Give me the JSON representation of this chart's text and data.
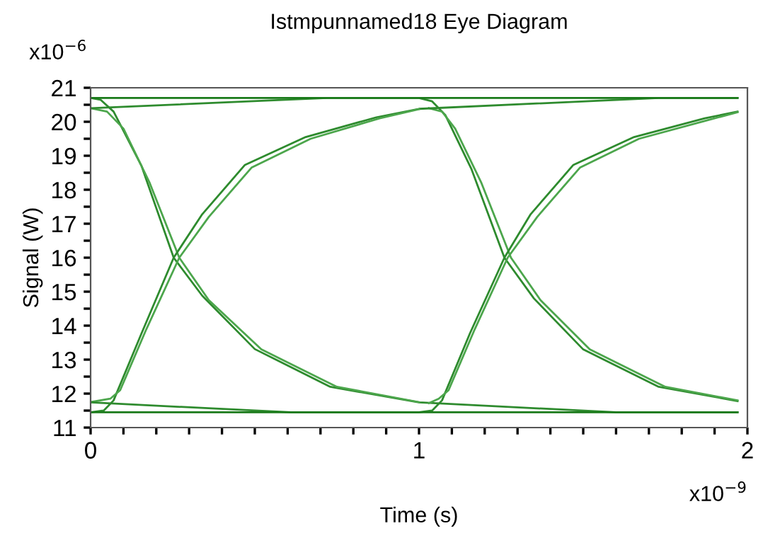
{
  "chart_data": {
    "type": "line",
    "title": "Istmpunnamed18 Eye Diagram",
    "xlabel": "Time (s)",
    "ylabel": "Signal (W)",
    "annotations": [
      "x10$^{−6}$",
      "x10$^{−9}$"
    ],
    "xlim": [
      0,
      2
    ],
    "ylim": [
      11,
      21
    ],
    "xticks": [
      0,
      {
        "value": 0.1,
        "label": null
      },
      {
        "value": 0.2,
        "label": null
      },
      {
        "value": 0.3,
        "label": null
      },
      {
        "value": 0.4,
        "label": null
      },
      {
        "value": 0.5,
        "label": null
      },
      {
        "value": 0.6,
        "label": null
      },
      {
        "value": 0.7,
        "label": null
      },
      {
        "value": 0.8,
        "label": null
      },
      {
        "value": 0.9,
        "label": null
      },
      1,
      {
        "value": 1.1,
        "label": null
      },
      {
        "value": 1.2,
        "label": null
      },
      {
        "value": 1.3,
        "label": null
      },
      {
        "value": 1.4,
        "label": null
      },
      {
        "value": 1.5,
        "label": null
      },
      {
        "value": 1.6,
        "label": null
      },
      {
        "value": 1.7,
        "label": null
      },
      {
        "value": 1.8,
        "label": null
      },
      {
        "value": 1.9,
        "label": null
      },
      2
    ],
    "yticks": [
      11,
      {
        "value": 11.5,
        "label": null
      },
      12,
      {
        "value": 12.5,
        "label": null
      },
      13,
      {
        "value": 13.5,
        "label": null
      },
      14,
      {
        "value": 14.5,
        "label": null
      },
      15,
      {
        "value": 15.5,
        "label": null
      },
      16,
      {
        "value": 16.5,
        "label": null
      },
      17,
      {
        "value": 17.5,
        "label": null
      },
      18,
      {
        "value": 18.5,
        "label": null
      },
      19,
      {
        "value": 19.5,
        "label": null
      },
      20,
      {
        "value": 20.5,
        "label": null
      },
      21
    ],
    "grid": false,
    "marker": "none",
    "line_style": "solid",
    "series": [
      {
        "color": "#2e8b2e",
        "x": [
          0,
          0.03,
          0.07,
          0.155,
          0.253,
          0.34,
          0.5,
          0.73,
          1.0,
          1.6,
          1.97
        ],
        "values": [
          20.7,
          20.65,
          20.3,
          18.7,
          16.0,
          14.88,
          13.31,
          12.2,
          11.74,
          11.45,
          11.45
        ]
      },
      {
        "color": "#4ca64c",
        "x": [
          0,
          0.05,
          0.1,
          0.18,
          0.27,
          0.36,
          0.52,
          0.75,
          1.0
        ],
        "values": [
          20.4,
          20.3,
          19.8,
          18.2,
          16.0,
          14.75,
          13.3,
          12.2,
          11.75
        ]
      },
      {
        "color": "#2e8b2e",
        "x": [
          0,
          0.72,
          1.0,
          1.04,
          1.08,
          1.16,
          1.26,
          1.35,
          1.5,
          1.73,
          1.97
        ],
        "values": [
          20.4,
          20.7,
          20.7,
          20.6,
          20.2,
          18.6,
          16.0,
          14.8,
          13.3,
          12.2,
          11.78
        ]
      },
      {
        "color": "#4ca64c",
        "x": [
          1.03,
          1.07,
          1.11,
          1.19,
          1.28,
          1.37,
          1.52,
          1.75,
          1.97
        ],
        "values": [
          20.4,
          20.3,
          19.8,
          18.2,
          16.0,
          14.75,
          13.3,
          12.2,
          11.8
        ]
      },
      {
        "color": "#2e8b2e",
        "x": [
          0,
          0.04,
          0.07,
          0.155,
          0.253,
          0.34,
          0.47,
          0.655,
          0.87,
          1.0,
          1.73,
          1.97
        ],
        "values": [
          11.45,
          11.5,
          11.8,
          13.77,
          16.0,
          17.28,
          18.73,
          19.55,
          20.13,
          20.38,
          20.7,
          20.7
        ]
      },
      {
        "color": "#4ca64c",
        "x": [
          0,
          0.06,
          0.09,
          0.17,
          0.27,
          0.36,
          0.49,
          0.67,
          0.88,
          1.0
        ],
        "values": [
          11.75,
          11.85,
          12.1,
          13.9,
          16.0,
          17.2,
          18.65,
          19.5,
          20.1,
          20.37
        ]
      },
      {
        "color": "#2e8b2e",
        "x": [
          0,
          0.61,
          1.0,
          1.04,
          1.07,
          1.155,
          1.26,
          1.34,
          1.47,
          1.655,
          1.87,
          1.97
        ],
        "values": [
          11.74,
          11.45,
          11.45,
          11.5,
          11.8,
          13.77,
          16.0,
          17.28,
          18.73,
          19.55,
          20.1,
          20.3
        ]
      },
      {
        "color": "#4ca64c",
        "x": [
          1.03,
          1.06,
          1.09,
          1.17,
          1.27,
          1.36,
          1.49,
          1.67,
          1.88,
          1.97
        ],
        "values": [
          11.72,
          11.85,
          12.1,
          13.9,
          16.0,
          17.2,
          18.65,
          19.5,
          20.05,
          20.28
        ]
      },
      {
        "color": "#1a7a1a",
        "x": [
          0,
          1.97
        ],
        "values": [
          20.7,
          20.7
        ]
      },
      {
        "color": "#1a7a1a",
        "x": [
          0,
          1.97
        ],
        "values": [
          11.45,
          11.45
        ]
      }
    ]
  }
}
